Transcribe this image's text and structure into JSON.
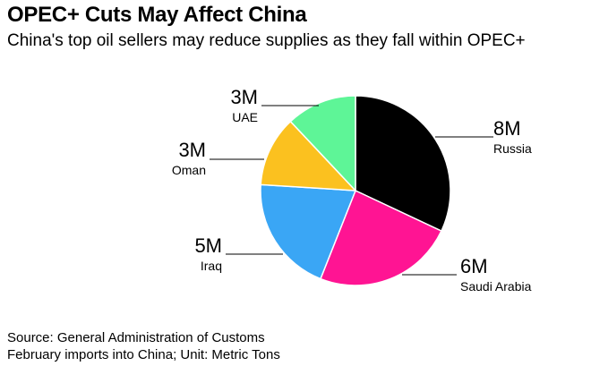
{
  "chart_data": {
    "type": "pie",
    "title": "OPEC+ Cuts May Affect China",
    "subtitle": "China's top oil sellers may reduce supplies as they fall within OPEC+",
    "slices": [
      {
        "label": "Russia",
        "value": 8,
        "value_label": "8M",
        "color": "#000000"
      },
      {
        "label": "Saudi Arabia",
        "value": 6,
        "value_label": "6M",
        "color": "#ff1493"
      },
      {
        "label": "Iraq",
        "value": 5,
        "value_label": "5M",
        "color": "#3aa6f5"
      },
      {
        "label": "Oman",
        "value": 3,
        "value_label": "3M",
        "color": "#fbc11f"
      },
      {
        "label": "UAE",
        "value": 3,
        "value_label": "3M",
        "color": "#5ef597"
      }
    ],
    "source": "Source: General Administration of Customs",
    "note": "February imports into China; Unit: Metric Tons"
  }
}
